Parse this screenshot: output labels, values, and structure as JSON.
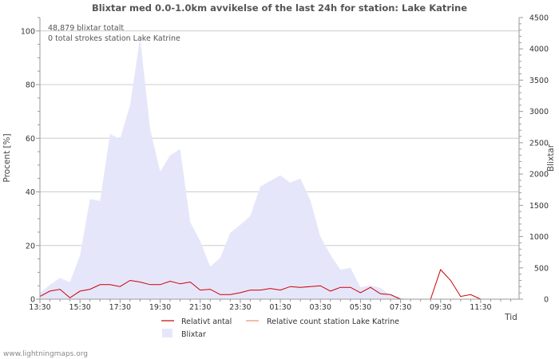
{
  "chart_data": {
    "type": "area",
    "title": "Blixtar med 0.0-1.0km avvikelse of the last 24h for station: Lake Katrine",
    "ylabel_left": "Procent   [%]",
    "ylabel_right": "Blixtar",
    "xlabel": "Tid",
    "ylim_left": [
      0,
      105
    ],
    "ylim_right": [
      0,
      4500
    ],
    "left_ticks": [
      0,
      20,
      40,
      60,
      80,
      100
    ],
    "right_ticks": [
      0,
      500,
      1000,
      1500,
      2000,
      2500,
      3000,
      3500,
      4000,
      4500
    ],
    "x_ticks": [
      "13:30",
      "15:30",
      "17:30",
      "19:30",
      "21:30",
      "23:30",
      "01:30",
      "03:30",
      "05:30",
      "07:30",
      "09:30",
      "11:30"
    ],
    "x_range_minutes": [
      0,
      1410
    ],
    "annotations": [
      "48,879 blixtar totalt",
      "0 total strokes station Lake Katrine"
    ],
    "series": [
      {
        "name": "Blixtar",
        "axis": "right",
        "color": "#e6e6fb",
        "x": [
          0,
          30,
          60,
          90,
          120,
          150,
          180,
          210,
          240,
          270,
          300,
          330,
          360,
          390,
          420,
          450,
          480,
          510,
          540,
          570,
          600,
          630,
          660,
          690,
          720,
          750,
          780,
          810,
          840,
          870,
          900,
          930,
          960,
          990,
          1020,
          1050,
          1080,
          1110,
          1140,
          1170,
          1200,
          1230,
          1260,
          1290,
          1320,
          1350,
          1380,
          1410
        ],
        "values": [
          100,
          230,
          340,
          270,
          700,
          1600,
          1570,
          2640,
          2560,
          3100,
          4180,
          2720,
          2040,
          2300,
          2400,
          1230,
          930,
          520,
          660,
          1060,
          1190,
          1330,
          1800,
          1890,
          1980,
          1860,
          1930,
          1580,
          1000,
          710,
          470,
          500,
          190,
          220,
          180,
          60,
          20,
          0,
          0,
          0,
          0,
          0,
          0,
          0,
          0,
          0,
          0,
          0
        ]
      },
      {
        "name": "Relativt antal",
        "axis": "left",
        "color": "#cc0000",
        "x": [
          0,
          30,
          60,
          90,
          120,
          150,
          180,
          210,
          240,
          270,
          300,
          330,
          360,
          390,
          420,
          450,
          480,
          510,
          540,
          570,
          600,
          630,
          660,
          690,
          720,
          750,
          780,
          810,
          840,
          870,
          900,
          930,
          960,
          990,
          1020,
          1050,
          1080,
          1110,
          1140,
          1170,
          1200,
          1230,
          1260,
          1290,
          1320,
          1350,
          1380,
          1410
        ],
        "values": [
          1.0,
          3.0,
          3.7,
          0.5,
          3.0,
          3.7,
          5.4,
          5.4,
          4.7,
          7.0,
          6.4,
          5.4,
          5.4,
          6.7,
          5.7,
          6.4,
          3.4,
          3.7,
          1.7,
          1.7,
          2.4,
          3.4,
          3.4,
          4.0,
          3.4,
          4.7,
          4.4,
          4.7,
          5.0,
          3.0,
          4.4,
          4.4,
          2.4,
          4.4,
          2.0,
          1.7,
          0.0,
          0.0,
          0.0,
          0.0,
          11.0,
          7.0,
          1.0,
          1.7,
          0.0,
          0.0,
          0.0,
          0.0
        ]
      },
      {
        "name": "Relative count station Lake Katrine",
        "axis": "left",
        "color": "#f0906c",
        "x": [],
        "values": []
      }
    ],
    "legend": [
      {
        "label": "Relativt antal",
        "type": "line",
        "color": "#cc0000"
      },
      {
        "label": "Relative count station Lake Katrine",
        "type": "line",
        "color": "#f0906c"
      },
      {
        "label": "Blixtar",
        "type": "area",
        "color": "#e6e6fb"
      }
    ],
    "credit": "www.lightningmaps.org"
  }
}
